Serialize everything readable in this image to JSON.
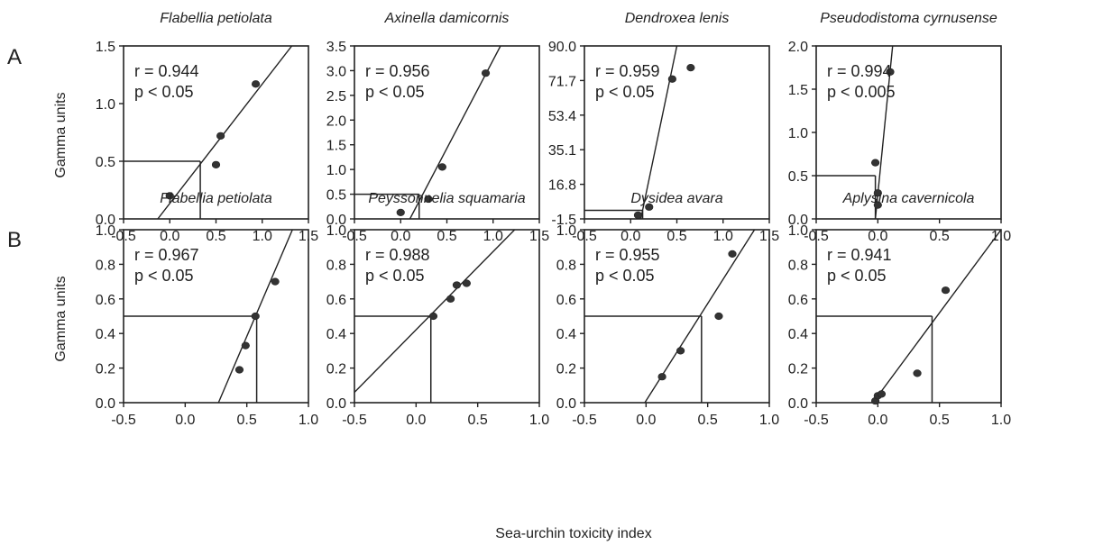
{
  "figure": {
    "x_label": "Sea-urchin toxicity index",
    "y_label": "Gamma units",
    "row_labels": [
      "A",
      "B"
    ]
  },
  "chart_data": [
    {
      "type": "scatter",
      "row": 0,
      "title": "Flabellia petiolata",
      "r_text": "r = 0.944",
      "p_text": "p < 0.05",
      "xlim": [
        -0.5,
        1.5
      ],
      "ylim": [
        0,
        1.5
      ],
      "xticks": [
        "-0.5",
        "0.0",
        "0.5",
        "1.0",
        "1.5"
      ],
      "xtick_values": [
        -0.5,
        0,
        0.5,
        1,
        1.5
      ],
      "yticks": [
        "0.0",
        "0.5",
        "1.0",
        "1.5"
      ],
      "ytick_values": [
        0,
        0.5,
        1,
        1.5
      ],
      "points": [
        [
          0.0,
          0.2
        ],
        [
          0.5,
          0.47
        ],
        [
          0.55,
          0.72
        ],
        [
          0.93,
          1.17
        ]
      ],
      "fit_line": [
        [
          -0.13,
          0
        ],
        [
          1.32,
          1.5
        ]
      ],
      "threshold": {
        "x": 0.33,
        "y": 0.5
      }
    },
    {
      "type": "scatter",
      "row": 0,
      "title": "Axinella damicornis",
      "r_text": "r = 0.956",
      "p_text": "p < 0.05",
      "xlim": [
        -0.5,
        1.5
      ],
      "ylim": [
        0,
        3.5
      ],
      "xticks": [
        "-0.5",
        "0.0",
        "0.5",
        "1.0",
        "1.5"
      ],
      "xtick_values": [
        -0.5,
        0,
        0.5,
        1,
        1.5
      ],
      "yticks": [
        "0.0",
        "0.5",
        "1.0",
        "1.5",
        "2.0",
        "2.5",
        "3.0",
        "3.5"
      ],
      "ytick_values": [
        0,
        0.5,
        1,
        1.5,
        2,
        2.5,
        3,
        3.5
      ],
      "points": [
        [
          0.0,
          0.13
        ],
        [
          0.3,
          0.4
        ],
        [
          0.45,
          1.05
        ],
        [
          0.92,
          2.95
        ]
      ],
      "fit_line": [
        [
          0.1,
          0
        ],
        [
          1.08,
          3.5
        ]
      ],
      "threshold": {
        "x": 0.2,
        "y": 0.5
      }
    },
    {
      "type": "scatter",
      "row": 0,
      "title": "Dendroxea lenis",
      "r_text": "r = 0.959",
      "p_text": "p < 0.05",
      "xlim": [
        -0.5,
        1.5
      ],
      "ylim": [
        -1.5,
        90
      ],
      "xticks": [
        "-0.5",
        "0.0",
        "0.5",
        "1.0",
        "1.5"
      ],
      "xtick_values": [
        -0.5,
        0,
        0.5,
        1,
        1.5
      ],
      "yticks": [
        "-1.5",
        "16.8",
        "35.1",
        "53.4",
        "71.7",
        "90.0"
      ],
      "ytick_values": [
        -1.5,
        16.8,
        35.1,
        53.4,
        71.7,
        90
      ],
      "points": [
        [
          0.08,
          0.5
        ],
        [
          0.2,
          4.8
        ],
        [
          0.45,
          72.5
        ],
        [
          0.65,
          78.5
        ]
      ],
      "fit_line": [
        [
          0.11,
          -1.5
        ],
        [
          0.5,
          90
        ]
      ],
      "threshold": {
        "x": 0.13,
        "y": 3.0
      }
    },
    {
      "type": "scatter",
      "row": 0,
      "title": "Pseudodistoma cyrnusense",
      "r_text": "r = 0.994",
      "p_text": "p < 0.005",
      "xlim": [
        -0.5,
        1.0
      ],
      "ylim": [
        0,
        2.0
      ],
      "xticks": [
        "-0.5",
        "0.0",
        "0.5",
        "1.0"
      ],
      "xtick_values": [
        -0.5,
        0,
        0.5,
        1
      ],
      "yticks": [
        "0.0",
        "0.5",
        "1.0",
        "1.5",
        "2.0"
      ],
      "ytick_values": [
        0,
        0.5,
        1,
        1.5,
        2
      ],
      "points": [
        [
          -0.02,
          0.65
        ],
        [
          0.0,
          0.3
        ],
        [
          0.0,
          0.16
        ],
        [
          0.1,
          1.7
        ]
      ],
      "fit_line": [
        [
          -0.02,
          0
        ],
        [
          0.12,
          2.0
        ]
      ],
      "threshold": {
        "x": -0.02,
        "y": 0.5
      }
    },
    {
      "type": "scatter",
      "row": 1,
      "title": "Flabellia petiolata",
      "r_text": "r = 0.967",
      "p_text": "p < 0.05",
      "xlim": [
        -0.5,
        1.0
      ],
      "ylim": [
        0,
        1.0
      ],
      "xticks": [
        "-0.5",
        "0.0",
        "0.5",
        "1.0"
      ],
      "xtick_values": [
        -0.5,
        0,
        0.5,
        1
      ],
      "yticks": [
        "0.0",
        "0.2",
        "0.4",
        "0.6",
        "0.8",
        "1.0"
      ],
      "ytick_values": [
        0,
        0.2,
        0.4,
        0.6,
        0.8,
        1
      ],
      "points": [
        [
          0.44,
          0.19
        ],
        [
          0.49,
          0.33
        ],
        [
          0.57,
          0.5
        ],
        [
          0.73,
          0.7
        ]
      ],
      "fit_line": [
        [
          0.27,
          0
        ],
        [
          0.87,
          1.0
        ]
      ],
      "threshold": {
        "x": 0.58,
        "y": 0.5
      }
    },
    {
      "type": "scatter",
      "row": 1,
      "title": "Peyssonnelia squamaria",
      "r_text": "r = 0.988",
      "p_text": "p < 0.05",
      "xlim": [
        -0.5,
        1.0
      ],
      "ylim": [
        0,
        1.0
      ],
      "xticks": [
        "-0.5",
        "0.0",
        "0.5",
        "1.0"
      ],
      "xtick_values": [
        -0.5,
        0,
        0.5,
        1
      ],
      "yticks": [
        "0.0",
        "0.2",
        "0.4",
        "0.6",
        "0.8",
        "1.0"
      ],
      "ytick_values": [
        0,
        0.2,
        0.4,
        0.6,
        0.8,
        1
      ],
      "points": [
        [
          0.14,
          0.5
        ],
        [
          0.28,
          0.6
        ],
        [
          0.33,
          0.68
        ],
        [
          0.41,
          0.69
        ]
      ],
      "fit_line": [
        [
          -0.5,
          0.06
        ],
        [
          0.8,
          1.0
        ]
      ],
      "threshold": {
        "x": 0.12,
        "y": 0.5
      }
    },
    {
      "type": "scatter",
      "row": 1,
      "title": "Dysidea avara",
      "r_text": "r = 0.955",
      "p_text": "p < 0.05",
      "xlim": [
        -0.5,
        1.0
      ],
      "ylim": [
        0,
        1.0
      ],
      "xticks": [
        "-0.5",
        "0.0",
        "0.5",
        "1.0"
      ],
      "xtick_values": [
        -0.5,
        0,
        0.5,
        1
      ],
      "yticks": [
        "0.0",
        "0.2",
        "0.4",
        "0.6",
        "0.8",
        "1.0"
      ],
      "ytick_values": [
        0,
        0.2,
        0.4,
        0.6,
        0.8,
        1
      ],
      "points": [
        [
          0.13,
          0.15
        ],
        [
          0.28,
          0.3
        ],
        [
          0.59,
          0.5
        ],
        [
          0.7,
          0.86
        ]
      ],
      "fit_line": [
        [
          -0.01,
          0
        ],
        [
          0.88,
          1.0
        ]
      ],
      "threshold": {
        "x": 0.45,
        "y": 0.5
      }
    },
    {
      "type": "scatter",
      "row": 1,
      "title": "Aplysina cavernicola",
      "r_text": "r = 0.941",
      "p_text": "p < 0.05",
      "xlim": [
        -0.5,
        1.0
      ],
      "ylim": [
        0,
        1.0
      ],
      "xticks": [
        "-0.5",
        "0.0",
        "0.5",
        "1.0"
      ],
      "xtick_values": [
        -0.5,
        0,
        0.5,
        1
      ],
      "yticks": [
        "0.0",
        "0.2",
        "0.4",
        "0.6",
        "0.8",
        "1.0"
      ],
      "ytick_values": [
        0,
        0.2,
        0.4,
        0.6,
        0.8,
        1
      ],
      "points": [
        [
          -0.02,
          0.01
        ],
        [
          0.0,
          0.04
        ],
        [
          0.03,
          0.05
        ],
        [
          0.32,
          0.17
        ],
        [
          0.55,
          0.65
        ]
      ],
      "fit_line": [
        [
          -0.04,
          0
        ],
        [
          1.0,
          1.0
        ]
      ],
      "threshold": {
        "x": 0.44,
        "y": 0.5
      }
    }
  ]
}
